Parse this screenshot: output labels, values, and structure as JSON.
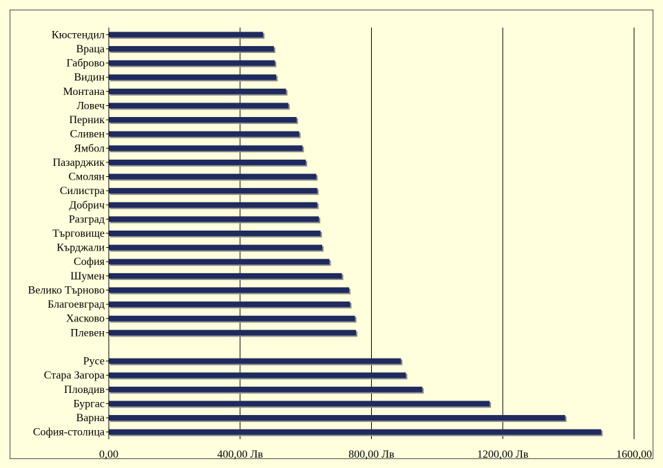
{
  "chart_data": {
    "type": "bar",
    "orientation": "horizontal",
    "categories": [
      "Кюстендил",
      "Враца",
      "Габрово",
      "Видин",
      "Монтана",
      "Ловеч",
      "Перник",
      "Сливен",
      "Ямбол",
      "Пазарджик",
      "Смолян",
      "Силистра",
      "Добрич",
      "Разград",
      "Търговище",
      "Кърджали",
      "София",
      "Шумен",
      "Велико Търново",
      "Благоевград",
      "Хасково",
      "Плевен",
      "",
      "Русе",
      "Стара Загора",
      "Пловдив",
      "Бургас",
      "Варна",
      "София-столица"
    ],
    "values": [
      470,
      503,
      506,
      510,
      540,
      547,
      572,
      580,
      590,
      600,
      632,
      635,
      635,
      640,
      645,
      650,
      672,
      710,
      732,
      735,
      750,
      753,
      null,
      890,
      905,
      955,
      1160,
      1390,
      1500
    ],
    "xlim": [
      0,
      1600
    ],
    "xticks": [
      0,
      400,
      800,
      1200,
      1600
    ],
    "xtick_labels": [
      "0,00",
      "400,00 Лв",
      "800,00 Лв",
      "1200,00 Лв",
      "1600,00"
    ],
    "grid": "vertical",
    "bar_color": "#1f2a5e",
    "bar_shadow_color": "#8a8a8a",
    "background_color": "#ffffdd"
  }
}
